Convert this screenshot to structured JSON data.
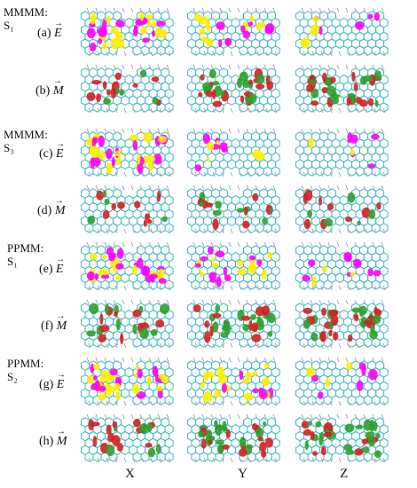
{
  "groups": [
    {
      "name": "MMMM:",
      "state": "S₁"
    },
    {
      "name": "MMMM:",
      "state": "S₃"
    },
    {
      "name": "PPMM:",
      "state": "S₁"
    },
    {
      "name": "PPMM:",
      "state": "S₂"
    }
  ],
  "rows": [
    {
      "tag": "(a)",
      "vector": "E"
    },
    {
      "tag": "(b)",
      "vector": "M"
    },
    {
      "tag": "(c)",
      "vector": "E"
    },
    {
      "tag": "(d)",
      "vector": "M"
    },
    {
      "tag": "(e)",
      "vector": "E"
    },
    {
      "tag": "(f)",
      "vector": "M"
    },
    {
      "tag": "(g)",
      "vector": "E"
    },
    {
      "tag": "(h)",
      "vector": "M"
    }
  ],
  "columns": [
    "X",
    "Y",
    "Z"
  ],
  "colors": {
    "molecule": "#3fb6c4",
    "hydrogen": "#9aa8ad",
    "positive_E": "#ff00ff",
    "negative_E": "#ffee00",
    "positive_M": "#d42020",
    "negative_M": "#2ca02c"
  },
  "lobe_density": [
    [
      0.9,
      0.45,
      0.15
    ],
    [
      0.35,
      0.75,
      0.85
    ],
    [
      0.9,
      0.2,
      0.1
    ],
    [
      0.25,
      0.35,
      0.3
    ],
    [
      0.9,
      0.5,
      0.2
    ],
    [
      0.5,
      0.8,
      0.95
    ],
    [
      0.95,
      0.55,
      0.15
    ],
    [
      0.5,
      0.8,
      0.85
    ]
  ]
}
